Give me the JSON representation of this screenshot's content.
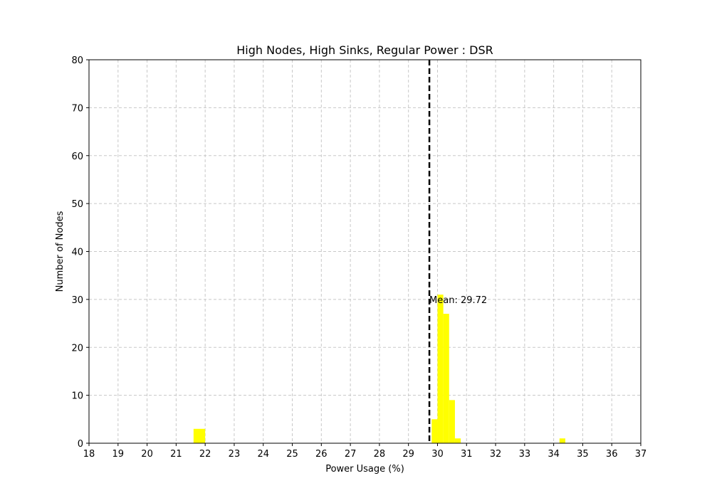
{
  "chart_data": {
    "type": "bar",
    "title": "High Nodes, High Sinks, Regular Power : DSR",
    "xlabel": "Power Usage (%)",
    "ylabel": "Number of Nodes",
    "xlim": [
      18,
      37
    ],
    "ylim": [
      0,
      80
    ],
    "xticks": [
      "18",
      "19",
      "20",
      "21",
      "22",
      "23",
      "24",
      "25",
      "26",
      "27",
      "28",
      "29",
      "30",
      "31",
      "32",
      "33",
      "34",
      "35",
      "36",
      "37"
    ],
    "yticks": [
      "0",
      "10",
      "20",
      "30",
      "40",
      "50",
      "60",
      "70",
      "80"
    ],
    "grid": true,
    "bar_color": "#ffff00",
    "bins": [
      {
        "x0": 21.6,
        "x1": 21.8,
        "count": 3
      },
      {
        "x0": 21.8,
        "x1": 22.0,
        "count": 3
      },
      {
        "x0": 29.8,
        "x1": 30.0,
        "count": 5
      },
      {
        "x0": 30.0,
        "x1": 30.2,
        "count": 31
      },
      {
        "x0": 30.2,
        "x1": 30.4,
        "count": 27
      },
      {
        "x0": 30.4,
        "x1": 30.6,
        "count": 9
      },
      {
        "x0": 30.6,
        "x1": 30.8,
        "count": 1
      },
      {
        "x0": 34.2,
        "x1": 34.4,
        "count": 1
      }
    ],
    "mean_line": {
      "value": 29.72,
      "label": "Mean: 29.72",
      "label_y": 30,
      "color": "#000000"
    }
  }
}
